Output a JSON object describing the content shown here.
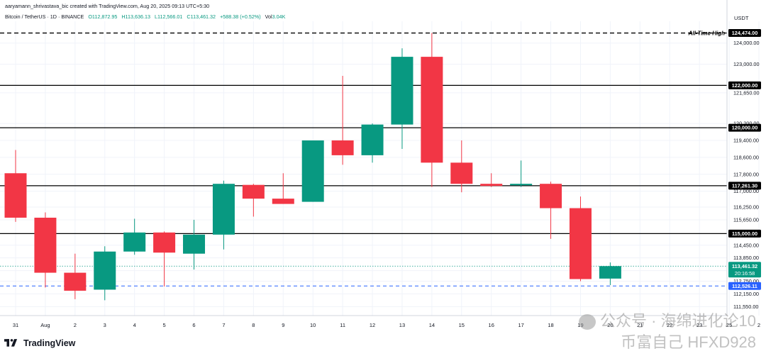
{
  "header": {
    "attribution": "aaryamann_shrivastava_bic created with TradingView.com, Aug 20, 2025 09:13 UTC+5:30",
    "symbol": "Bitcoin / TetherUS · 1D · BINANCE",
    "open": "O112,872.95",
    "high": "H113,636.13",
    "low": "L112,566.01",
    "close": "C113,461.32",
    "change": "+588.38 (+0.52%)",
    "volume_label": "Vol",
    "volume_value": "3.04K"
  },
  "branding": {
    "logo_text": "TradingView"
  },
  "watermark": {
    "line1": "公众号 · 海绵进化论10",
    "line2": "币富自己 HFXD928"
  },
  "colors": {
    "up": "#089981",
    "down": "#f23645",
    "level": "#000000",
    "support": "#2962ff",
    "grid": "#f0f3fa"
  },
  "chart_data": {
    "type": "candlestick",
    "currency_label": "USDT",
    "ylim": [
      111550,
      125000
    ],
    "grid": true,
    "x_ticks": [
      "31",
      "Aug",
      "2",
      "3",
      "4",
      "5",
      "6",
      "7",
      "8",
      "9",
      "10",
      "11",
      "12",
      "13",
      "14",
      "15",
      "16",
      "17",
      "18",
      "19",
      "20",
      "21",
      "22",
      "23",
      "25",
      "2"
    ],
    "y_ticks": [
      124000,
      123000,
      121650,
      120200,
      119400,
      118600,
      117800,
      117000,
      116250,
      115650,
      114450,
      113850,
      113250,
      112750,
      112150,
      111550
    ],
    "y_tick_labels": [
      "124,000.00",
      "123,000.00",
      "121,650.00",
      "120,200.00",
      "119,400.00",
      "118,600.00",
      "117,800.00",
      "117,000.00",
      "116,250.00",
      "115,650.00",
      "114,450.00",
      "113,850.00",
      "113,250.00",
      "112,750.00",
      "112,150.00",
      "111,550.00"
    ],
    "candles": [
      {
        "date": "31",
        "open": 117850,
        "high": 118950,
        "low": 115550,
        "close": 115750
      },
      {
        "date": "Aug",
        "open": 115750,
        "high": 116000,
        "low": 112450,
        "close": 113150
      },
      {
        "date": "2",
        "open": 113150,
        "high": 114050,
        "low": 111900,
        "close": 112300
      },
      {
        "date": "3",
        "open": 112350,
        "high": 114400,
        "low": 111850,
        "close": 114150
      },
      {
        "date": "4",
        "open": 114150,
        "high": 115700,
        "low": 114000,
        "close": 115050
      },
      {
        "date": "5",
        "open": 115050,
        "high": 115100,
        "low": 112500,
        "close": 114100
      },
      {
        "date": "6",
        "open": 114050,
        "high": 115650,
        "low": 113300,
        "close": 114950
      },
      {
        "date": "7",
        "open": 114950,
        "high": 117500,
        "low": 114250,
        "close": 117350
      },
      {
        "date": "8",
        "open": 117300,
        "high": 117350,
        "low": 115800,
        "close": 116650
      },
      {
        "date": "9",
        "open": 116650,
        "high": 117850,
        "low": 116400,
        "close": 116400
      },
      {
        "date": "10",
        "open": 116500,
        "high": 119400,
        "low": 116500,
        "close": 119400
      },
      {
        "date": "11",
        "open": 119400,
        "high": 122450,
        "low": 118250,
        "close": 118700
      },
      {
        "date": "12",
        "open": 118700,
        "high": 120200,
        "low": 118350,
        "close": 120150
      },
      {
        "date": "13",
        "open": 120150,
        "high": 123750,
        "low": 119000,
        "close": 123350
      },
      {
        "date": "14",
        "open": 123350,
        "high": 124474,
        "low": 117200,
        "close": 118350
      },
      {
        "date": "15",
        "open": 118350,
        "high": 119400,
        "low": 116950,
        "close": 117350
      },
      {
        "date": "16",
        "open": 117350,
        "high": 117850,
        "low": 117200,
        "close": 117250
      },
      {
        "date": "17",
        "open": 117280,
        "high": 118450,
        "low": 117200,
        "close": 117350
      },
      {
        "date": "18",
        "open": 117350,
        "high": 117450,
        "low": 114750,
        "close": 116200
      },
      {
        "date": "19",
        "open": 116200,
        "high": 116750,
        "low": 112750,
        "close": 112850
      },
      {
        "date": "20",
        "open": 112873,
        "high": 113636,
        "low": 112566,
        "close": 113461
      }
    ],
    "levels": [
      {
        "value": 124474,
        "label": "124,474.00",
        "style": "dashed",
        "annotation": "All-Time High"
      },
      {
        "value": 122000,
        "label": "122,000.00",
        "style": "solid"
      },
      {
        "value": 120000,
        "label": "120,000.00",
        "style": "solid"
      },
      {
        "value": 117261.3,
        "label": "117,261.30",
        "style": "solid"
      },
      {
        "value": 115000,
        "label": "115,000.00",
        "style": "solid"
      },
      {
        "value": 112526.11,
        "label": "112,526.11",
        "style": "dashed-blue"
      }
    ],
    "last_price": {
      "value": 113461.32,
      "label": "113,461.32",
      "countdown": "20:16:58"
    }
  }
}
